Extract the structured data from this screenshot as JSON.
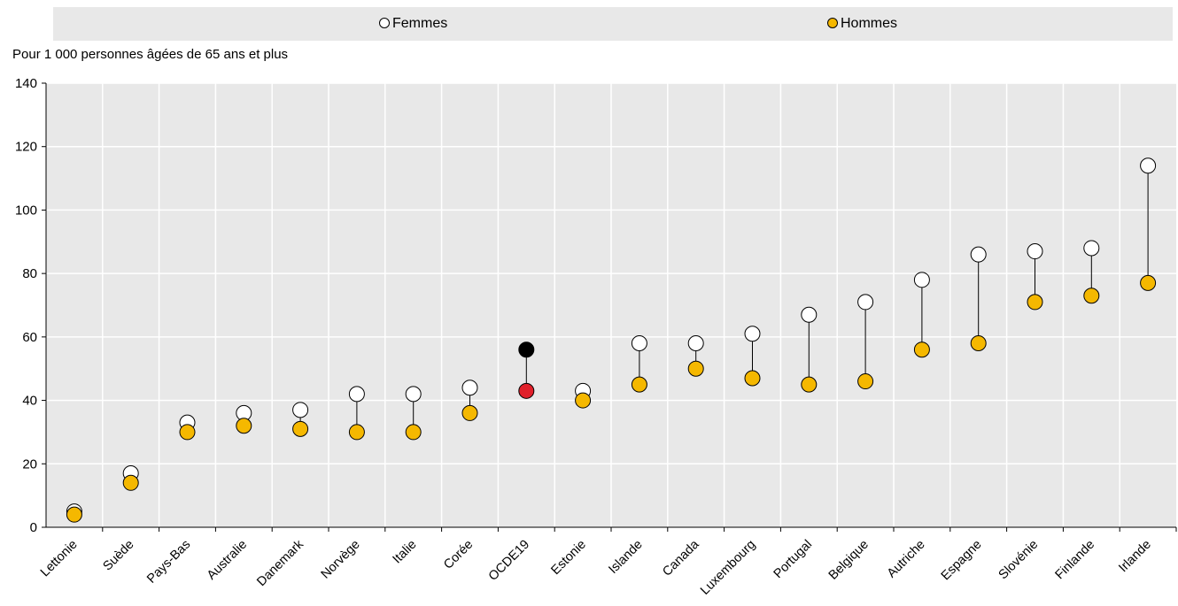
{
  "chart_data": {
    "type": "scatter",
    "unit_label": "Pour 1 000 personnes âgées de 65 ans et plus",
    "legend": {
      "placement": "top",
      "items": [
        {
          "name": "Femmes",
          "color": "#ffffff"
        },
        {
          "name": "Hommes",
          "color": "#f5b800"
        }
      ]
    },
    "ylim": [
      0,
      140
    ],
    "yticks": [
      "0",
      "20",
      "40",
      "60",
      "80",
      "100",
      "120",
      "140"
    ],
    "categories": [
      "Lettonie",
      "Suède",
      "Pays-Bas",
      "Australie",
      "Danemark",
      "Norvège",
      "Italie",
      "Corée",
      "OCDE19",
      "Estonie",
      "Islande",
      "Canada",
      "Luxembourg",
      "Portugal",
      "Belgique",
      "Autriche",
      "Espagne",
      "Slovénie",
      "Finlande",
      "Irlande"
    ],
    "series": [
      {
        "name": "Femmes",
        "values": [
          5,
          17,
          33,
          36,
          37,
          42,
          42,
          44,
          56,
          43,
          58,
          58,
          61,
          67,
          71,
          78,
          86,
          87,
          88,
          114
        ]
      },
      {
        "name": "Hommes",
        "values": [
          4,
          14,
          30,
          32,
          31,
          30,
          30,
          36,
          43,
          40,
          45,
          50,
          47,
          45,
          46,
          56,
          58,
          71,
          73,
          77
        ]
      }
    ],
    "highlight": {
      "category": "OCDE19",
      "femmes_color": "#000000",
      "hommes_color": "#e0202a"
    },
    "grid": true
  }
}
